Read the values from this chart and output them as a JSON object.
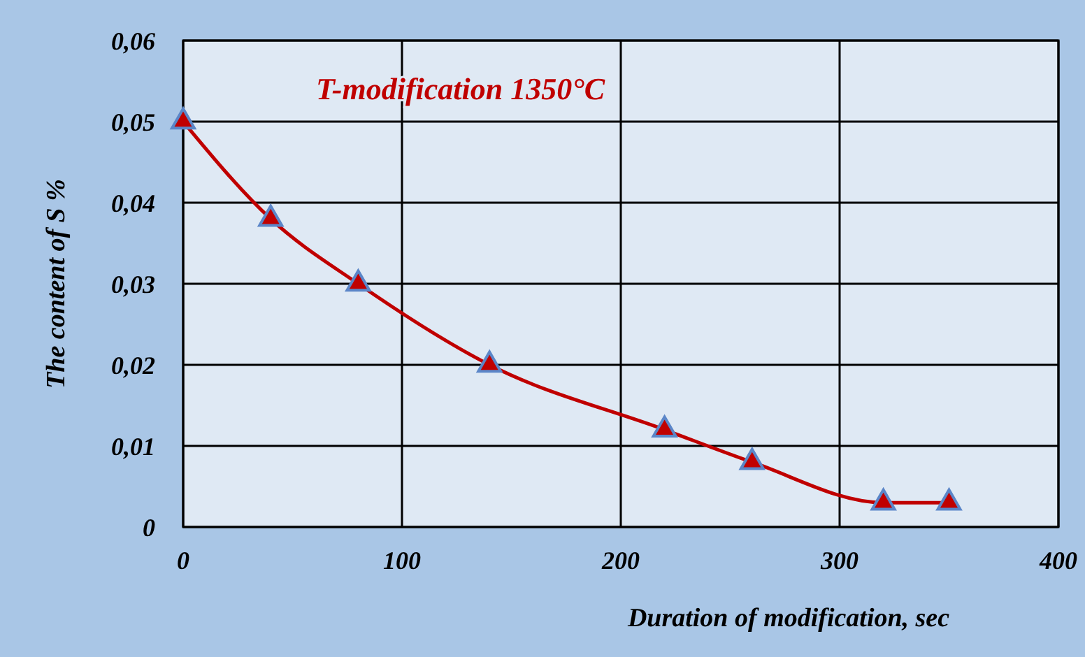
{
  "chart_data": {
    "type": "line",
    "xlabel": "Duration of modification, sec",
    "ylabel": "The content of S %",
    "annotations": [
      "T-modification 1350°C"
    ],
    "x": [
      0,
      40,
      80,
      140,
      220,
      260,
      320,
      350
    ],
    "series": [
      {
        "color": "#c00000",
        "values": [
          0.05,
          0.038,
          0.03,
          0.02,
          0.012,
          0.008,
          0.003,
          0.003
        ]
      }
    ],
    "xlim": [
      0,
      400
    ],
    "xticks": [
      0,
      100,
      200,
      300,
      400
    ],
    "ylim": [
      0,
      0.06
    ],
    "yticks": [
      {
        "value": 0,
        "label": "0"
      },
      {
        "value": 0.01,
        "label": "0,01"
      },
      {
        "value": 0.02,
        "label": "0,02"
      },
      {
        "value": 0.03,
        "label": "0,03"
      },
      {
        "value": 0.04,
        "label": "0,04"
      },
      {
        "value": 0.05,
        "label": "0,05"
      },
      {
        "value": 0.06,
        "label": "0,06"
      }
    ],
    "grid": true,
    "marker": "triangle",
    "line_style": "solid"
  }
}
